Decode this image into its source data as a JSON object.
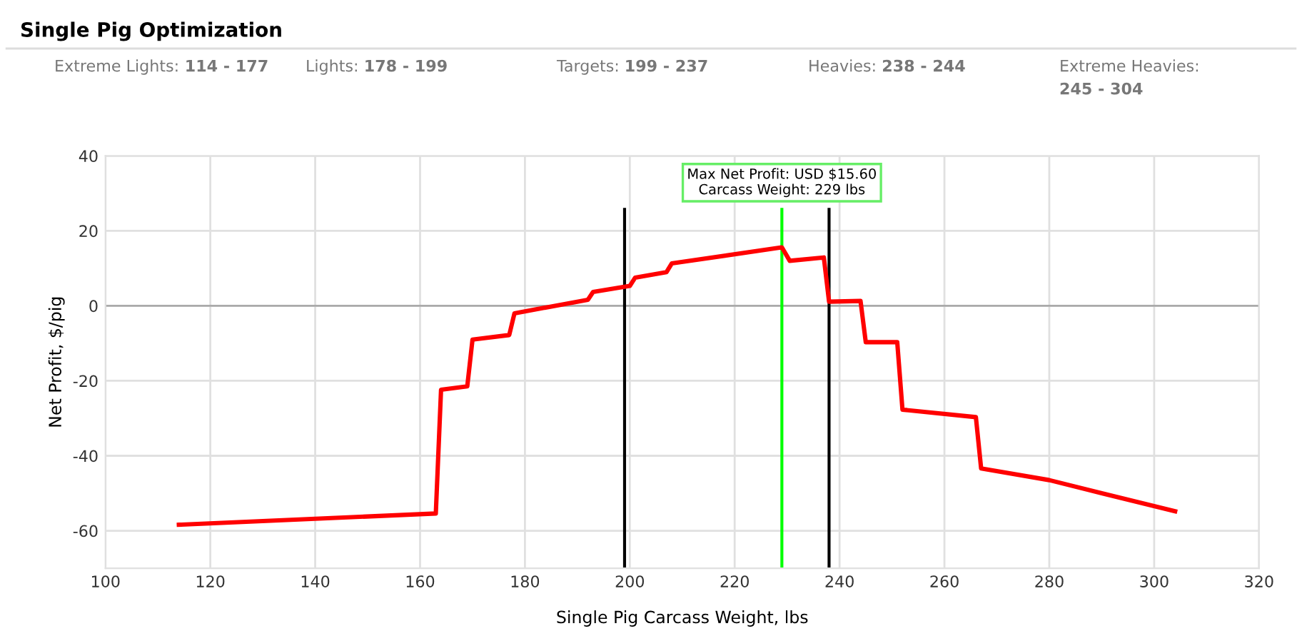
{
  "chart_data": {
    "type": "line",
    "title": "Single Pig Optimization",
    "subtitle": [
      "Extreme Lights: 114 - 177",
      "Lights: 178 - 199",
      "Targets: 199 - 237",
      "Heavies: 238 - 244",
      "Extreme Heavies: 245 - 304"
    ],
    "xlabel": "Single Pig Carcass Weight, lbs",
    "ylabel": "Net Profit, $/pig",
    "series": [
      {
        "color": "#ff0000",
        "x": [
          114,
          163,
          164,
          169,
          170,
          177,
          178,
          192,
          193,
          200,
          201,
          207,
          208,
          229,
          230.5,
          237,
          238,
          244,
          245,
          251,
          252,
          266,
          267,
          280,
          290,
          304
        ],
        "values": [
          -58.4,
          -55.4,
          -22.4,
          -21.5,
          -9,
          -7.8,
          -2,
          1.6,
          3.7,
          5.3,
          7.5,
          9,
          11.3,
          15.6,
          12,
          12.9,
          1.1,
          1.3,
          -9.7,
          -9.7,
          -27.7,
          -29.7,
          -43.4,
          -46.5,
          -50,
          -54.8
        ]
      }
    ],
    "ref_lines": [
      {
        "axis": "x",
        "value": 199,
        "color": "#000000"
      },
      {
        "axis": "x",
        "value": 238,
        "color": "#000000"
      },
      {
        "axis": "x",
        "value": 229,
        "color": "#00ff00"
      }
    ],
    "annotations": [
      "Max Net Profit: USD $15.60\nCarcass Weight: 229 lbs"
    ],
    "xlim": [
      100,
      320
    ],
    "xticks": [
      100,
      120,
      140,
      160,
      180,
      200,
      220,
      240,
      260,
      280,
      300,
      320
    ],
    "ylim": [
      -70,
      40
    ],
    "yticks": [
      -60,
      -40,
      -20,
      0,
      20,
      40
    ],
    "grid": true,
    "legend": false,
    "marker": "none",
    "line_style": "solid"
  }
}
